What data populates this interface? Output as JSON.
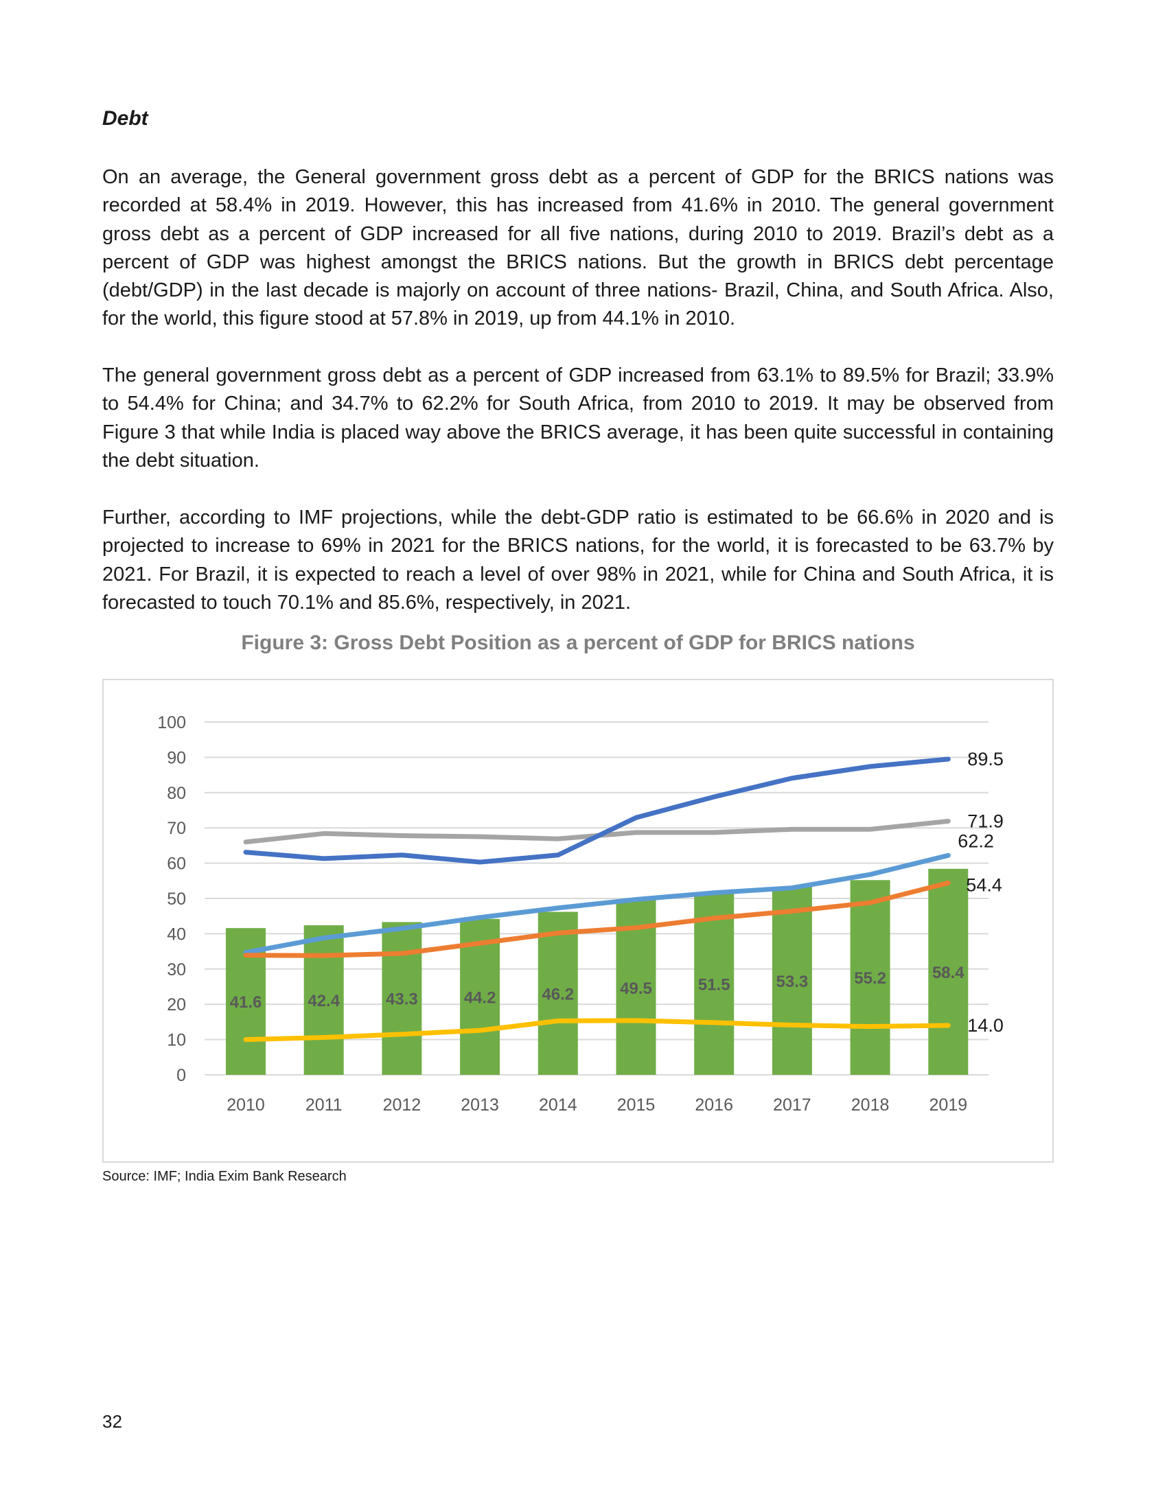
{
  "heading": "Debt",
  "paragraphs": [
    "On an average, the General government gross debt as a percent of GDP for the BRICS nations was recorded at 58.4% in 2019. However, this has increased from 41.6% in 2010. The general government gross debt as a percent of GDP increased for all five nations, during 2010 to 2019. Brazil’s debt as a percent of GDP was highest amongst the BRICS nations. But the growth in BRICS debt percentage (debt/GDP) in the last decade is majorly on account of three nations- Brazil, China, and South Africa. Also, for the world, this figure stood at 57.8% in 2019, up from 44.1% in 2010.",
    "The general government gross debt as a percent of GDP increased from 63.1% to 89.5% for Brazil; 33.9% to 54.4% for China; and 34.7% to 62.2% for South Africa, from 2010 to 2019. It may be observed from Figure 3 that while India is placed way above the BRICS average, it has been quite successful in containing the debt situation.",
    "Further, according to IMF projections, while the debt-GDP ratio is estimated to be 66.6% in 2020 and is projected to increase to 69% in 2021 for the BRICS nations, for the world, it is forecasted to be 63.7% by 2021. For Brazil, it is expected to reach a level of over 98% in 2021, while for China and South Africa, it is forecasted to touch 70.1% and 85.6%, respectively, in 2021."
  ],
  "figure_title": "Figure 3: Gross Debt Position as a percent of GDP for BRICS nations",
  "source": "Source: IMF; India Exim Bank Research",
  "page_number": "32",
  "chart_data": {
    "type": "bar+line",
    "title": "",
    "xlabel": "",
    "ylabel": "",
    "ylim": [
      0,
      100
    ],
    "yticks": [
      "0",
      "10",
      "20",
      "30",
      "40",
      "50",
      "60",
      "70",
      "80",
      "90",
      "100"
    ],
    "grid": true,
    "legend": "none",
    "categories": [
      "2010",
      "2011",
      "2012",
      "2013",
      "2014",
      "2015",
      "2016",
      "2017",
      "2018",
      "2019"
    ],
    "bars": {
      "color": "#70AD47",
      "values": [
        41.6,
        42.4,
        43.3,
        44.2,
        46.2,
        49.5,
        51.5,
        53.3,
        55.2,
        58.4
      ],
      "labels": [
        "41.6",
        "42.4",
        "43.3",
        "44.2",
        "46.2",
        "49.5",
        "51.5",
        "53.3",
        "55.2",
        "58.4"
      ]
    },
    "lines": [
      {
        "color": "#A5A5A5",
        "values": [
          66.0,
          68.4,
          67.8,
          67.5,
          66.9,
          68.7,
          68.7,
          69.6,
          69.6,
          71.9
        ],
        "end_label": "71.9"
      },
      {
        "color": "#4472C4",
        "values": [
          63.1,
          61.3,
          62.3,
          60.3,
          62.3,
          72.9,
          78.8,
          84.1,
          87.4,
          89.5
        ],
        "end_label": "89.5"
      },
      {
        "color": "#5B9BD5",
        "values": [
          34.7,
          38.8,
          41.5,
          44.6,
          47.3,
          49.7,
          51.6,
          53.0,
          56.8,
          62.2
        ],
        "end_label": "62.2"
      },
      {
        "color": "#ED7D31",
        "values": [
          33.9,
          33.8,
          34.4,
          37.3,
          40.2,
          41.7,
          44.4,
          46.4,
          48.8,
          54.4
        ],
        "end_label": "54.4"
      },
      {
        "color": "#FFC000",
        "values": [
          10.0,
          10.6,
          11.5,
          12.6,
          15.3,
          15.4,
          14.8,
          14.1,
          13.7,
          14.0
        ],
        "end_label": "14.0"
      }
    ]
  }
}
